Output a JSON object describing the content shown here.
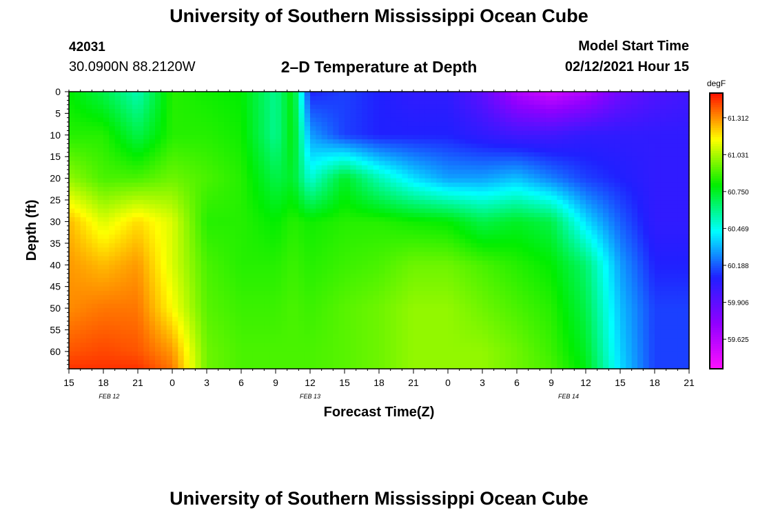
{
  "header": {
    "title": "University of Southern Mississippi Ocean Cube",
    "station_id": "42031",
    "station_coords": "30.0900N 88.2120W",
    "subtitle": "2–D Temperature at Depth",
    "model_start_label": "Model Start Time",
    "model_start_value": "02/12/2021 Hour 15"
  },
  "footer": {
    "title": "University of Southern Mississippi Ocean Cube"
  },
  "chart_data": {
    "type": "heatmap",
    "title": "2–D Temperature at Depth",
    "xlabel": "Forecast Time(Z)",
    "ylabel": "Depth (ft)",
    "x_ticks": [
      "15",
      "18",
      "21",
      "0",
      "3",
      "6",
      "9",
      "12",
      "15",
      "18",
      "21",
      "0",
      "3",
      "6",
      "9",
      "12",
      "15",
      "18",
      "21"
    ],
    "x_range_hours": [
      0,
      54
    ],
    "date_labels": [
      {
        "label": "FEB 12",
        "hour": 3.5
      },
      {
        "label": "FEB 13",
        "hour": 21
      },
      {
        "label": "FEB 14",
        "hour": 43.5
      }
    ],
    "y_ticks": [
      0,
      5,
      10,
      15,
      20,
      25,
      30,
      35,
      40,
      45,
      50,
      55,
      60
    ],
    "ylim": [
      0,
      64
    ],
    "colorbar": {
      "unit": "degF",
      "min": 59.4,
      "max": 61.5,
      "tick_values": [
        61.312,
        61.031,
        60.75,
        60.469,
        60.188,
        59.906,
        59.625
      ],
      "tick_labels": [
        "61.312",
        "61.031",
        "60.750",
        "60.469",
        "60.188",
        "59.906",
        "59.625"
      ],
      "colors_low_to_high": [
        "#ff10ff",
        "#9000ff",
        "#2020ff",
        "#00ffff",
        "#00ee00",
        "#ffff00",
        "#ff1000"
      ]
    },
    "approx_temperature_degF": {
      "hours": [
        0,
        3,
        6,
        9,
        12,
        15,
        18,
        19.5,
        21,
        24,
        27,
        30,
        33,
        36,
        39,
        42,
        45,
        48,
        51,
        54
      ],
      "depths_ft": [
        0,
        10,
        20,
        30,
        40,
        50,
        60,
        64
      ],
      "values": [
        [
          60.8,
          60.7,
          60.55,
          60.85,
          60.82,
          60.8,
          60.6,
          60.8,
          60.1,
          60.15,
          60.1,
          60.05,
          60.05,
          59.9,
          59.65,
          59.55,
          59.65,
          59.85,
          59.95,
          60.0
        ],
        [
          60.85,
          60.85,
          60.7,
          60.85,
          60.85,
          60.82,
          60.6,
          60.8,
          60.3,
          60.15,
          60.1,
          60.1,
          60.1,
          60.05,
          60.0,
          60.0,
          60.05,
          60.05,
          60.05,
          60.05
        ],
        [
          61.0,
          60.9,
          60.9,
          60.95,
          60.9,
          60.85,
          60.7,
          60.75,
          60.5,
          60.75,
          60.55,
          60.4,
          60.3,
          60.3,
          60.35,
          60.25,
          60.15,
          60.1,
          60.05,
          60.05
        ],
        [
          61.25,
          61.1,
          61.2,
          61.1,
          60.85,
          60.85,
          60.8,
          60.85,
          60.82,
          60.85,
          60.85,
          60.82,
          60.8,
          60.7,
          60.75,
          60.7,
          60.4,
          60.2,
          60.05,
          60.05
        ],
        [
          61.3,
          61.25,
          61.3,
          61.1,
          60.9,
          60.85,
          60.85,
          60.88,
          60.85,
          60.88,
          60.9,
          60.95,
          60.95,
          60.9,
          60.85,
          60.8,
          60.65,
          60.3,
          60.1,
          60.1
        ],
        [
          61.32,
          61.35,
          61.35,
          61.15,
          60.92,
          60.88,
          60.88,
          60.9,
          60.88,
          60.92,
          60.95,
          61.0,
          61.0,
          60.95,
          60.9,
          60.85,
          60.7,
          60.35,
          60.15,
          60.15
        ],
        [
          61.4,
          61.42,
          61.4,
          61.3,
          60.95,
          60.9,
          60.9,
          60.9,
          60.9,
          60.92,
          60.95,
          61.0,
          61.0,
          61.0,
          60.95,
          60.88,
          60.75,
          60.38,
          60.15,
          60.15
        ],
        [
          61.45,
          61.45,
          61.45,
          61.35,
          60.95,
          60.9,
          60.9,
          60.9,
          60.9,
          60.92,
          60.95,
          61.0,
          61.0,
          61.0,
          60.95,
          60.9,
          60.78,
          60.4,
          60.15,
          60.15
        ]
      ]
    }
  }
}
